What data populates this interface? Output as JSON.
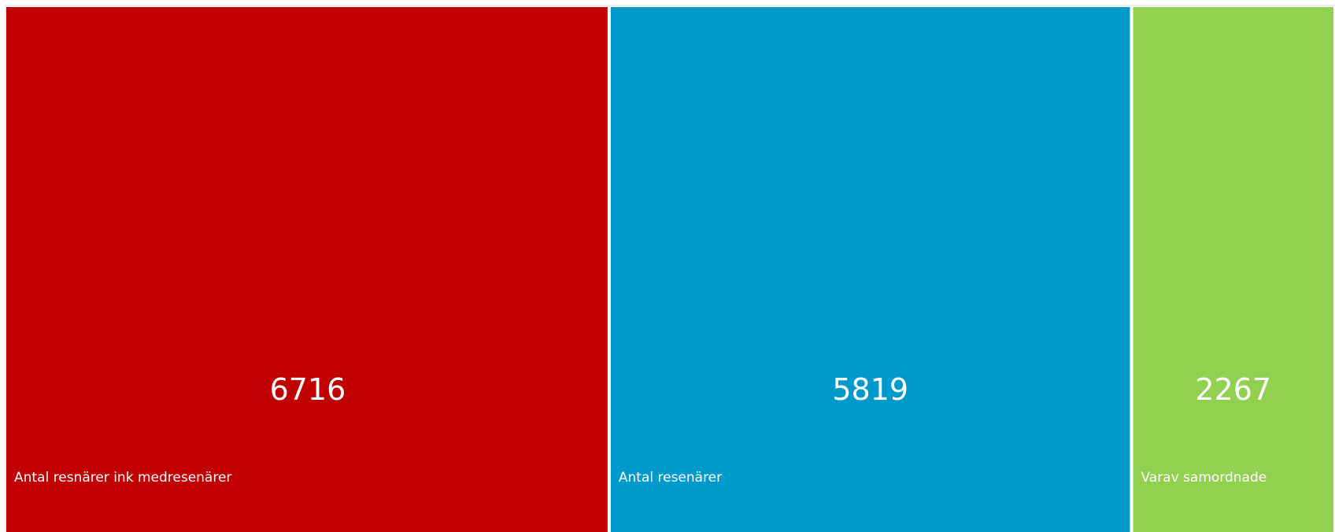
{
  "chart_data": {
    "type": "treemap",
    "items": [
      {
        "label": "Antal resnärer ink medresenärer",
        "value": 6716,
        "color": "#c00000"
      },
      {
        "label": "Antal resenärer",
        "value": 5819,
        "color": "#0099cc"
      },
      {
        "label": "Varav samordnade",
        "value": 2267,
        "color": "#92d050"
      }
    ],
    "border_color": "#ffffff",
    "frame_color": "#d9d9d9"
  }
}
